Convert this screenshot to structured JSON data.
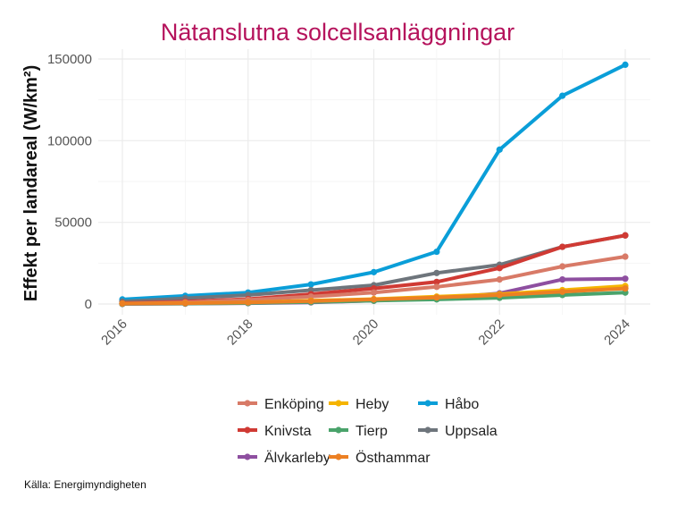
{
  "chart_data": {
    "type": "line",
    "title": "Nätanslutna solcellsanläggningar",
    "xlabel": "",
    "ylabel": "Effekt per landareal (W/km²)",
    "x": [
      2016,
      2017,
      2018,
      2019,
      2020,
      2021,
      2022,
      2023,
      2024
    ],
    "xticks": [
      "2016",
      "2018",
      "2020",
      "2022",
      "2024"
    ],
    "xlim": [
      2016,
      2024
    ],
    "ylim": [
      0,
      150000
    ],
    "yticks": [
      "0",
      "50000",
      "100000",
      "150000"
    ],
    "ytick_values": [
      0,
      50000,
      100000,
      150000
    ],
    "grid": true,
    "legend_position": "bottom",
    "series": [
      {
        "name": "Enköping",
        "color": "#d87a67",
        "values": [
          300,
          1000,
          2500,
          4500,
          7000,
          10500,
          15000,
          23000,
          29000
        ]
      },
      {
        "name": "Knivsta",
        "color": "#d03a34",
        "values": [
          500,
          1500,
          3000,
          6000,
          9500,
          13500,
          22000,
          35000,
          42000
        ]
      },
      {
        "name": "Älvkarleby",
        "color": "#8e4fa0",
        "values": [
          0,
          200,
          500,
          1000,
          2000,
          3500,
          6500,
          15000,
          15500
        ]
      },
      {
        "name": "Heby",
        "color": "#f5b400",
        "values": [
          200,
          500,
          1000,
          2000,
          3000,
          4500,
          6000,
          8500,
          11000
        ]
      },
      {
        "name": "Tierp",
        "color": "#4aa36b",
        "values": [
          100,
          300,
          600,
          1200,
          2000,
          2800,
          3800,
          5500,
          7000
        ]
      },
      {
        "name": "Östhammar",
        "color": "#ec8023",
        "values": [
          300,
          500,
          1000,
          1800,
          2800,
          4000,
          5500,
          7500,
          9500
        ]
      },
      {
        "name": "Håbo",
        "color": "#0a9ed8",
        "values": [
          2800,
          5000,
          7000,
          12000,
          19500,
          32000,
          94500,
          127500,
          146500
        ]
      },
      {
        "name": "Uppsala",
        "color": "#6e757c",
        "values": [
          1500,
          3500,
          5500,
          8500,
          11500,
          19000,
          24000,
          35000,
          42000
        ]
      }
    ],
    "draw_order": [
      "Håbo",
      "Uppsala",
      "Knivsta",
      "Enköping",
      "Älvkarleby",
      "Heby",
      "Tierp",
      "Östhammar"
    ]
  },
  "caption": "Källa: Energimyndigheten"
}
